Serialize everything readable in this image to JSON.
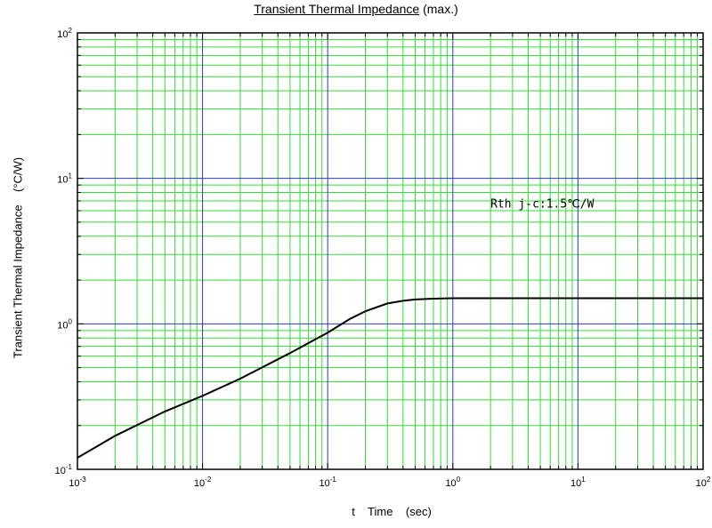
{
  "chart_data": {
    "type": "line",
    "title_main": "Transient Thermal Impedance",
    "title_suffix": " (max.)",
    "xlabel": "t    Time    (sec)",
    "ylabel": "Transient Thermal Impedance    (°C/W)",
    "xscale": "log",
    "yscale": "log",
    "xlim": [
      0.001,
      100
    ],
    "ylim": [
      0.1,
      100
    ],
    "grid": true,
    "x_tick_labels": [
      {
        "base": "10",
        "exp": "-3"
      },
      {
        "base": "10",
        "exp": "-2"
      },
      {
        "base": "10",
        "exp": "-1"
      },
      {
        "base": "10",
        "exp": "0"
      },
      {
        "base": "10",
        "exp": "1"
      },
      {
        "base": "10",
        "exp": "2"
      }
    ],
    "y_tick_labels": [
      {
        "base": "10",
        "exp": "-1"
      },
      {
        "base": "10",
        "exp": "0"
      },
      {
        "base": "10",
        "exp": "1"
      },
      {
        "base": "10",
        "exp": "2"
      }
    ],
    "annotation": {
      "text": "Rth j-c:1.5℃/W",
      "x": 2,
      "y": 6.3
    },
    "colors": {
      "major_grid": "#3333cc",
      "minor_grid": "#33dd33",
      "curve": "#000000"
    },
    "series": [
      {
        "x": [
          0.001,
          0.002,
          0.005,
          0.01,
          0.02,
          0.05,
          0.1,
          0.15,
          0.2,
          0.3,
          0.4,
          0.5,
          0.7,
          1,
          2,
          5,
          10,
          20,
          50,
          100
        ],
        "y": [
          0.12,
          0.17,
          0.25,
          0.32,
          0.42,
          0.63,
          0.87,
          1.08,
          1.22,
          1.38,
          1.44,
          1.47,
          1.49,
          1.5,
          1.5,
          1.5,
          1.5,
          1.5,
          1.5,
          1.5
        ]
      }
    ]
  }
}
